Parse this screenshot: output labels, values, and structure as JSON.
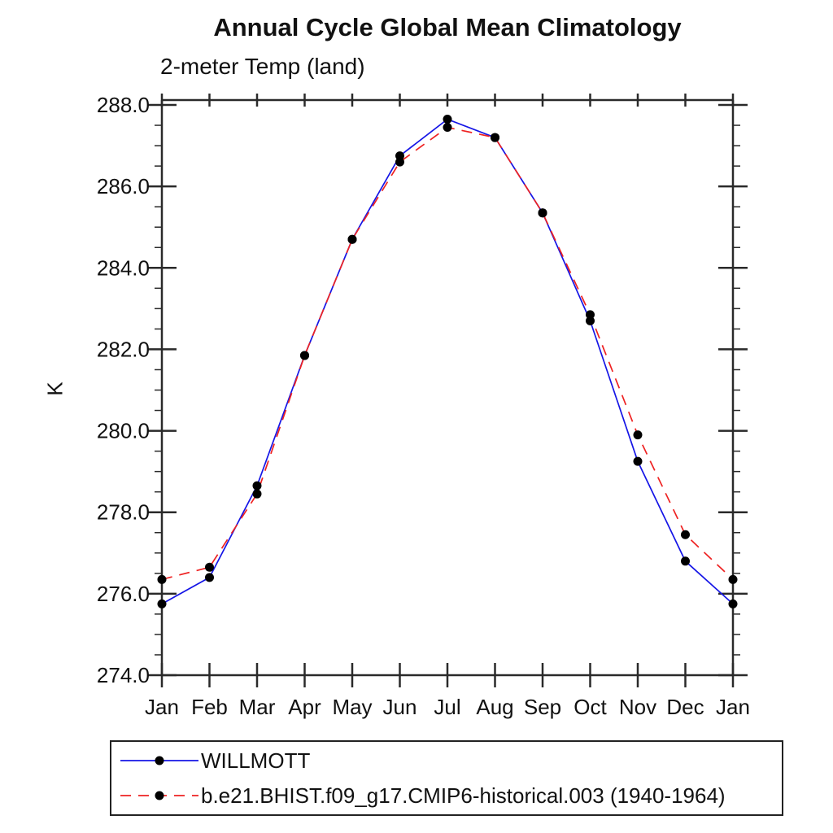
{
  "page": {
    "background": "#ffffff"
  },
  "chart_data": {
    "type": "line",
    "title": "Annual Cycle Global Mean Climatology",
    "subtitle": "2-meter Temp (land)",
    "ylabel": "K",
    "x_categories": [
      "Jan",
      "Feb",
      "Mar",
      "Apr",
      "May",
      "Jun",
      "Jul",
      "Aug",
      "Sep",
      "Oct",
      "Nov",
      "Dec",
      "Jan"
    ],
    "ylim": [
      274.0,
      288.12
    ],
    "ytick_step_major": 2.0,
    "ytick_step_minor": 0.5,
    "ytick_labels": [
      "274.0",
      "276.0",
      "278.0",
      "280.0",
      "282.0",
      "284.0",
      "286.0",
      "288.0"
    ],
    "grid": "off",
    "axis_color": "#2a2a2a",
    "marker_color": "#000000",
    "series": [
      {
        "name": "WILLMOTT",
        "color": "#1515e6",
        "line_style": "solid",
        "marker": "circle",
        "values": [
          275.75,
          276.4,
          278.65,
          281.85,
          284.7,
          286.75,
          287.65,
          287.2,
          285.35,
          282.7,
          279.25,
          276.8,
          275.75
        ]
      },
      {
        "name": "b.e21.BHIST.f09_g17.CMIP6-historical.003 (1940-1964)",
        "color": "#ee2222",
        "line_style": "dashed",
        "marker": "circle",
        "values": [
          276.35,
          276.65,
          278.45,
          281.85,
          284.7,
          286.6,
          287.45,
          287.2,
          285.35,
          282.85,
          279.9,
          277.45,
          276.35
        ]
      }
    ],
    "legend_position": "bottom-left"
  }
}
